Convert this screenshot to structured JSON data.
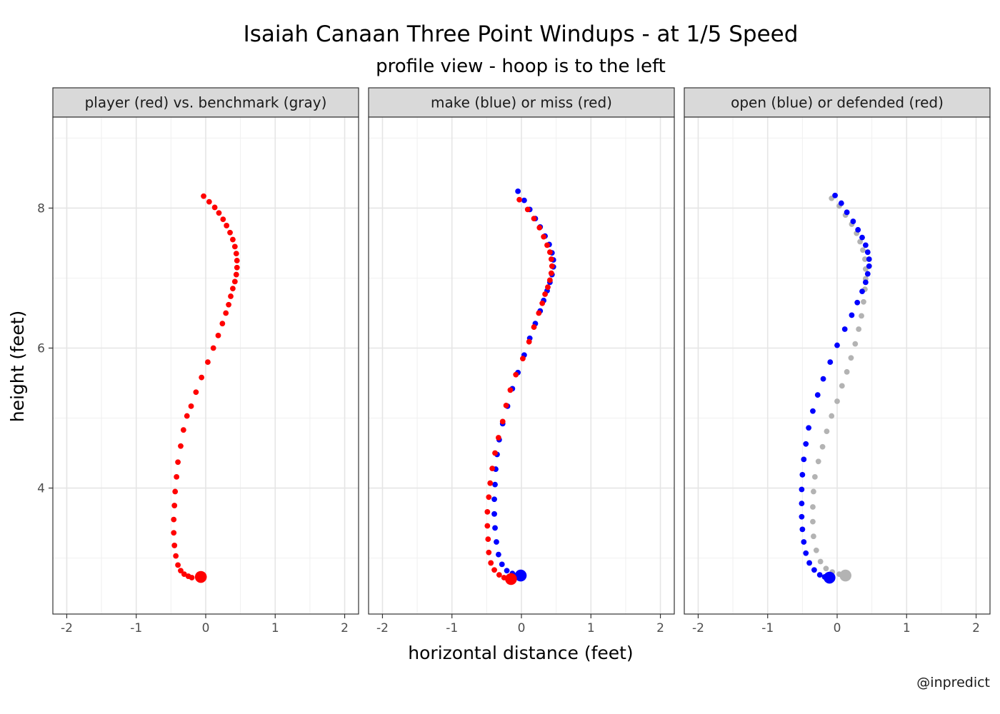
{
  "chart_data": {
    "type": "scatter",
    "title": "Isaiah Canaan Three Point Windups - at 1/5 Speed",
    "subtitle": "profile view - hoop is to the left",
    "xlabel": "horizontal distance (feet)",
    "ylabel": "height (feet)",
    "caption": "@inpredict",
    "xlim": [
      -2.2,
      2.2
    ],
    "ylim": [
      2.2,
      9.3
    ],
    "x_ticks": [
      -2,
      -1,
      0,
      1,
      2
    ],
    "y_ticks": [
      4,
      6,
      8
    ],
    "grid": true,
    "colors": {
      "red": "#ff0000",
      "blue": "#0000ff",
      "gray": "#b3b3b3"
    },
    "panels": [
      {
        "label": "player (red) vs. benchmark (gray)",
        "series": [
          {
            "color": "red",
            "release": [
              -0.07,
              2.73
            ],
            "points": [
              [
                -0.03,
                8.17
              ],
              [
                0.05,
                8.09
              ],
              [
                0.13,
                8.01
              ],
              [
                0.19,
                7.93
              ],
              [
                0.25,
                7.84
              ],
              [
                0.3,
                7.75
              ],
              [
                0.35,
                7.65
              ],
              [
                0.39,
                7.55
              ],
              [
                0.42,
                7.45
              ],
              [
                0.44,
                7.35
              ],
              [
                0.45,
                7.25
              ],
              [
                0.45,
                7.15
              ],
              [
                0.44,
                7.05
              ],
              [
                0.42,
                6.95
              ],
              [
                0.39,
                6.85
              ],
              [
                0.36,
                6.74
              ],
              [
                0.33,
                6.62
              ],
              [
                0.29,
                6.5
              ],
              [
                0.24,
                6.35
              ],
              [
                0.18,
                6.18
              ],
              [
                0.11,
                6.0
              ],
              [
                0.03,
                5.8
              ],
              [
                -0.06,
                5.58
              ],
              [
                -0.14,
                5.37
              ],
              [
                -0.21,
                5.17
              ],
              [
                -0.27,
                5.03
              ],
              [
                -0.32,
                4.83
              ],
              [
                -0.36,
                4.6
              ],
              [
                -0.4,
                4.37
              ],
              [
                -0.42,
                4.16
              ],
              [
                -0.44,
                3.95
              ],
              [
                -0.45,
                3.75
              ],
              [
                -0.46,
                3.55
              ],
              [
                -0.46,
                3.36
              ],
              [
                -0.45,
                3.18
              ],
              [
                -0.43,
                3.03
              ],
              [
                -0.4,
                2.9
              ],
              [
                -0.36,
                2.82
              ],
              [
                -0.31,
                2.77
              ],
              [
                -0.25,
                2.74
              ],
              [
                -0.2,
                2.72
              ]
            ]
          }
        ]
      },
      {
        "label": "make (blue) or miss (red)",
        "series": [
          {
            "color": "blue",
            "release": [
              -0.01,
              2.75
            ],
            "points": [
              [
                -0.05,
                8.24
              ],
              [
                0.04,
                8.11
              ],
              [
                0.12,
                7.98
              ],
              [
                0.2,
                7.85
              ],
              [
                0.27,
                7.73
              ],
              [
                0.34,
                7.6
              ],
              [
                0.4,
                7.48
              ],
              [
                0.44,
                7.36
              ],
              [
                0.46,
                7.26
              ],
              [
                0.46,
                7.16
              ],
              [
                0.44,
                7.05
              ],
              [
                0.41,
                6.94
              ],
              [
                0.37,
                6.82
              ],
              [
                0.32,
                6.68
              ],
              [
                0.27,
                6.53
              ],
              [
                0.2,
                6.35
              ],
              [
                0.12,
                6.14
              ],
              [
                0.04,
                5.9
              ],
              [
                -0.05,
                5.65
              ],
              [
                -0.13,
                5.42
              ],
              [
                -0.2,
                5.17
              ],
              [
                -0.27,
                4.92
              ],
              [
                -0.32,
                4.69
              ],
              [
                -0.35,
                4.48
              ],
              [
                -0.37,
                4.27
              ],
              [
                -0.38,
                4.05
              ],
              [
                -0.39,
                3.84
              ],
              [
                -0.39,
                3.63
              ],
              [
                -0.38,
                3.43
              ],
              [
                -0.36,
                3.23
              ],
              [
                -0.33,
                3.05
              ],
              [
                -0.28,
                2.91
              ],
              [
                -0.21,
                2.82
              ],
              [
                -0.13,
                2.78
              ],
              [
                -0.06,
                2.76
              ]
            ]
          },
          {
            "color": "red",
            "release": [
              -0.15,
              2.7
            ],
            "points": [
              [
                -0.03,
                8.12
              ],
              [
                0.09,
                7.98
              ],
              [
                0.18,
                7.85
              ],
              [
                0.26,
                7.72
              ],
              [
                0.32,
                7.59
              ],
              [
                0.37,
                7.47
              ],
              [
                0.41,
                7.37
              ],
              [
                0.43,
                7.27
              ],
              [
                0.44,
                7.17
              ],
              [
                0.43,
                7.07
              ],
              [
                0.41,
                6.97
              ],
              [
                0.38,
                6.87
              ],
              [
                0.34,
                6.77
              ],
              [
                0.3,
                6.64
              ],
              [
                0.25,
                6.5
              ],
              [
                0.18,
                6.3
              ],
              [
                0.11,
                6.09
              ],
              [
                0.02,
                5.85
              ],
              [
                -0.08,
                5.62
              ],
              [
                -0.16,
                5.4
              ],
              [
                -0.22,
                5.18
              ],
              [
                -0.27,
                4.95
              ],
              [
                -0.33,
                4.72
              ],
              [
                -0.38,
                4.5
              ],
              [
                -0.42,
                4.28
              ],
              [
                -0.45,
                4.07
              ],
              [
                -0.47,
                3.87
              ],
              [
                -0.49,
                3.66
              ],
              [
                -0.49,
                3.46
              ],
              [
                -0.48,
                3.27
              ],
              [
                -0.47,
                3.08
              ],
              [
                -0.44,
                2.93
              ],
              [
                -0.39,
                2.83
              ],
              [
                -0.32,
                2.76
              ],
              [
                -0.25,
                2.72
              ]
            ]
          }
        ]
      },
      {
        "label": "open (blue) or defended (red)",
        "series": [
          {
            "color": "gray",
            "release": [
              0.12,
              2.75
            ],
            "points": [
              [
                -0.08,
                8.14
              ],
              [
                0.03,
                8.03
              ],
              [
                0.12,
                7.9
              ],
              [
                0.21,
                7.77
              ],
              [
                0.28,
                7.64
              ],
              [
                0.33,
                7.52
              ],
              [
                0.37,
                7.4
              ],
              [
                0.4,
                7.27
              ],
              [
                0.41,
                7.13
              ],
              [
                0.41,
                6.99
              ],
              [
                0.4,
                6.84
              ],
              [
                0.38,
                6.66
              ],
              [
                0.35,
                6.46
              ],
              [
                0.31,
                6.27
              ],
              [
                0.26,
                6.06
              ],
              [
                0.2,
                5.86
              ],
              [
                0.14,
                5.66
              ],
              [
                0.07,
                5.46
              ],
              [
                0.0,
                5.24
              ],
              [
                -0.08,
                5.03
              ],
              [
                -0.15,
                4.81
              ],
              [
                -0.21,
                4.59
              ],
              [
                -0.27,
                4.38
              ],
              [
                -0.32,
                4.16
              ],
              [
                -0.34,
                3.95
              ],
              [
                -0.35,
                3.73
              ],
              [
                -0.35,
                3.52
              ],
              [
                -0.34,
                3.31
              ],
              [
                -0.3,
                3.11
              ],
              [
                -0.24,
                2.95
              ],
              [
                -0.16,
                2.85
              ],
              [
                -0.07,
                2.8
              ],
              [
                0.03,
                2.77
              ]
            ]
          },
          {
            "color": "blue",
            "release": [
              -0.11,
              2.72
            ],
            "points": [
              [
                -0.03,
                8.18
              ],
              [
                0.06,
                8.07
              ],
              [
                0.14,
                7.94
              ],
              [
                0.23,
                7.81
              ],
              [
                0.3,
                7.69
              ],
              [
                0.36,
                7.58
              ],
              [
                0.41,
                7.47
              ],
              [
                0.44,
                7.37
              ],
              [
                0.46,
                7.27
              ],
              [
                0.46,
                7.17
              ],
              [
                0.44,
                7.06
              ],
              [
                0.41,
                6.94
              ],
              [
                0.36,
                6.81
              ],
              [
                0.29,
                6.65
              ],
              [
                0.21,
                6.47
              ],
              [
                0.11,
                6.27
              ],
              [
                0.0,
                6.04
              ],
              [
                -0.1,
                5.8
              ],
              [
                -0.2,
                5.56
              ],
              [
                -0.28,
                5.33
              ],
              [
                -0.35,
                5.1
              ],
              [
                -0.41,
                4.86
              ],
              [
                -0.45,
                4.63
              ],
              [
                -0.48,
                4.41
              ],
              [
                -0.5,
                4.19
              ],
              [
                -0.51,
                3.98
              ],
              [
                -0.51,
                3.78
              ],
              [
                -0.51,
                3.59
              ],
              [
                -0.5,
                3.41
              ],
              [
                -0.48,
                3.23
              ],
              [
                -0.45,
                3.07
              ],
              [
                -0.4,
                2.93
              ],
              [
                -0.33,
                2.83
              ],
              [
                -0.25,
                2.76
              ],
              [
                -0.18,
                2.73
              ]
            ]
          }
        ]
      }
    ]
  }
}
